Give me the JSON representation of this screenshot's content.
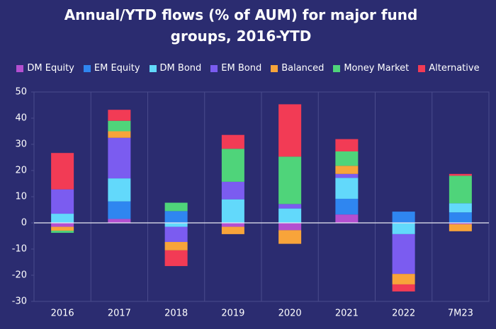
{
  "chart_data": {
    "type": "stacked_bar",
    "title": "Annual/YTD flows (% of AUM) for major fund groups, 2016-YTD",
    "categories": [
      "2016",
      "2017",
      "2018",
      "2019",
      "2020",
      "2021",
      "2022",
      "7M23"
    ],
    "series": [
      {
        "name": "DM Equity",
        "color": "#b44fd0",
        "values": [
          -1.5,
          1.5,
          0,
          -1.5,
          -2.8,
          3.2,
          0,
          -0.5
        ]
      },
      {
        "name": "EM Equity",
        "color": "#2f86f0",
        "values": [
          0,
          6.7,
          4.5,
          0,
          0,
          6.0,
          4.3,
          4.0
        ]
      },
      {
        "name": "DM Bond",
        "color": "#62d9fb",
        "values": [
          3.5,
          8.8,
          -1.5,
          9.0,
          5.5,
          8.0,
          -4.3,
          3.5
        ]
      },
      {
        "name": "EM Bond",
        "color": "#7b5cf0",
        "values": [
          9.3,
          15.5,
          -5.8,
          6.7,
          1.7,
          1.5,
          -15.2,
          0
        ]
      },
      {
        "name": "Balanced",
        "color": "#f8a43a",
        "values": [
          -1.5,
          2.5,
          -3.2,
          -2.8,
          -5.2,
          3.1,
          -4.0,
          -2.7
        ]
      },
      {
        "name": "Money Market",
        "color": "#4fd47a",
        "values": [
          -0.8,
          4.0,
          3.2,
          12.6,
          18.1,
          5.5,
          0,
          10.5
        ]
      },
      {
        "name": "Alternative",
        "color": "#f23b55",
        "values": [
          13.9,
          4.2,
          -6.0,
          5.3,
          20.0,
          4.7,
          -2.7,
          0.7
        ]
      }
    ],
    "ylim": [
      -30,
      50
    ],
    "yticks": [
      -30,
      -20,
      -10,
      0,
      10,
      20,
      30,
      40,
      50
    ]
  }
}
